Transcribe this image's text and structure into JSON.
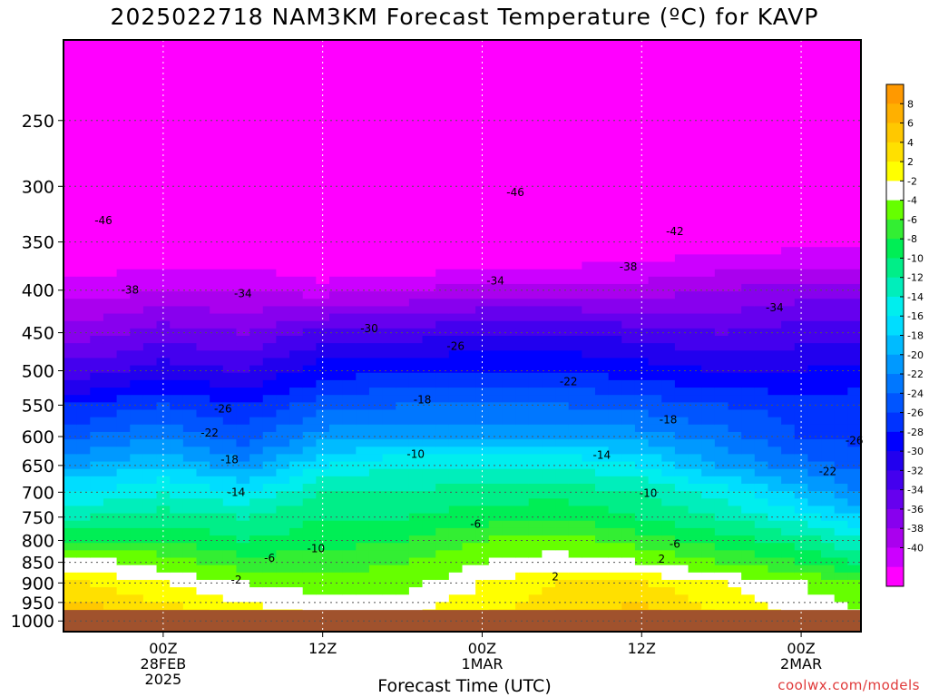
{
  "title": "2025022718 NAM3KM Forecast Temperature (ºC) for KAVP",
  "credit": "coolwx.com/models",
  "chart_data": {
    "type": "heatmap",
    "title": "2025022718 NAM3KM Forecast Temperature (ºC) for KAVP",
    "xlabel": "Forecast Time (UTC)",
    "ylabel": "",
    "y_ticks": [
      250,
      300,
      350,
      400,
      450,
      500,
      550,
      600,
      650,
      700,
      750,
      800,
      850,
      900,
      950,
      1000
    ],
    "x_ticks": [
      {
        "label": "00Z",
        "sub1": "28FEB",
        "sub2": "2025",
        "hour": 6
      },
      {
        "label": "12Z",
        "sub1": "",
        "sub2": "",
        "hour": 18
      },
      {
        "label": "00Z",
        "sub1": "1MAR",
        "sub2": "",
        "hour": 30
      },
      {
        "label": "12Z",
        "sub1": "",
        "sub2": "",
        "hour": 42
      },
      {
        "label": "00Z",
        "sub1": "2MAR",
        "sub2": "",
        "hour": 54
      }
    ],
    "x_hours": [
      0,
      6,
      12,
      18,
      24,
      30,
      36,
      42,
      48,
      54,
      60
    ],
    "levels_hpa": [
      200,
      250,
      300,
      350,
      400,
      450,
      500,
      550,
      600,
      650,
      700,
      750,
      800,
      850,
      900,
      950,
      1000
    ],
    "temperature_c": [
      [
        -54,
        -54,
        -54,
        -54,
        -54,
        -54,
        -54,
        -54,
        -54,
        -54,
        -54
      ],
      [
        -51,
        -50,
        -50,
        -51,
        -52,
        -53,
        -52,
        -51,
        -50,
        -50,
        -50
      ],
      [
        -46,
        -46,
        -46,
        -47,
        -48,
        -48,
        -47,
        -46,
        -45,
        -45,
        -45
      ],
      [
        -43,
        -42,
        -42,
        -44,
        -44,
        -44,
        -43,
        -42,
        -41,
        -41,
        -41
      ],
      [
        -39,
        -38,
        -38,
        -39,
        -38,
        -37,
        -37,
        -37,
        -36,
        -35,
        -35
      ],
      [
        -35,
        -33,
        -34,
        -31,
        -31,
        -30,
        -30,
        -31,
        -32,
        -31,
        -31
      ],
      [
        -31,
        -29,
        -30,
        -27,
        -26,
        -26,
        -26,
        -27,
        -28,
        -28,
        -27
      ],
      [
        -26,
        -24,
        -26,
        -23,
        -22,
        -22,
        -22,
        -23,
        -24,
        -25,
        -25
      ],
      [
        -22,
        -20,
        -23,
        -19,
        -18,
        -18,
        -18,
        -19,
        -21,
        -24,
        -25
      ],
      [
        -18,
        -16,
        -19,
        -14,
        -12,
        -12,
        -12,
        -14,
        -18,
        -21,
        -23
      ],
      [
        -14,
        -12,
        -14,
        -10,
        -10,
        -9,
        -9,
        -10,
        -13,
        -17,
        -21
      ],
      [
        -10,
        -9,
        -10,
        -8,
        -8,
        -7,
        -6,
        -8,
        -10,
        -13,
        -17
      ],
      [
        -6,
        -6,
        -8,
        -7,
        -6,
        -4,
        -3,
        -5,
        -7,
        -9,
        -13
      ],
      [
        -1,
        -3,
        -5,
        -5,
        -4,
        -2,
        -1,
        -2,
        -4,
        -6,
        -9
      ],
      [
        2,
        0,
        -2,
        -3,
        -3,
        0,
        2,
        2,
        0,
        -2,
        -5
      ],
      [
        4,
        2,
        0,
        -1,
        -1,
        1,
        3,
        4,
        1,
        -1,
        -3
      ],
      [
        6,
        4,
        2,
        0,
        0,
        2,
        5,
        5,
        2,
        0,
        -2
      ]
    ],
    "surface_hpa": [
      970,
      970,
      970,
      970,
      970,
      970,
      970,
      970,
      970,
      970,
      970
    ],
    "contour_labels": [
      {
        "text": "-46",
        "hour": 1.5,
        "hpa": 330
      },
      {
        "text": "-46",
        "hour": 32.5,
        "hpa": 305
      },
      {
        "text": "-42",
        "hour": 44.5,
        "hpa": 340
      },
      {
        "text": "-38",
        "hour": 3.5,
        "hpa": 400
      },
      {
        "text": "-38",
        "hour": 41,
        "hpa": 375
      },
      {
        "text": "-34",
        "hour": 12,
        "hpa": 404
      },
      {
        "text": "-34",
        "hour": 31,
        "hpa": 390
      },
      {
        "text": "-34",
        "hour": 52,
        "hpa": 420
      },
      {
        "text": "-30",
        "hour": 21.5,
        "hpa": 445
      },
      {
        "text": "-26",
        "hour": 28,
        "hpa": 467
      },
      {
        "text": "-26",
        "hour": 10.5,
        "hpa": 556
      },
      {
        "text": "-26",
        "hour": 58,
        "hpa": 607
      },
      {
        "text": "-22",
        "hour": 36.5,
        "hpa": 515
      },
      {
        "text": "-22",
        "hour": 9.5,
        "hpa": 594
      },
      {
        "text": "-22",
        "hour": 56,
        "hpa": 661
      },
      {
        "text": "-18",
        "hour": 25.5,
        "hpa": 542
      },
      {
        "text": "-18",
        "hour": 44,
        "hpa": 573
      },
      {
        "text": "-18",
        "hour": 11,
        "hpa": 640
      },
      {
        "text": "-14",
        "hour": 11.5,
        "hpa": 700
      },
      {
        "text": "-14",
        "hour": 39,
        "hpa": 632
      },
      {
        "text": "-10",
        "hour": 25,
        "hpa": 630
      },
      {
        "text": "-10",
        "hour": 42.5,
        "hpa": 702
      },
      {
        "text": "-10",
        "hour": 17.5,
        "hpa": 818
      },
      {
        "text": "-6",
        "hour": 29.5,
        "hpa": 765
      },
      {
        "text": "-6",
        "hour": 44.5,
        "hpa": 808
      },
      {
        "text": "-6",
        "hour": 14,
        "hpa": 840
      },
      {
        "text": "-2",
        "hour": 11.5,
        "hpa": 893
      },
      {
        "text": "2",
        "hour": 43.5,
        "hpa": 842
      },
      {
        "text": "2",
        "hour": 35.5,
        "hpa": 885
      }
    ],
    "colorbar": {
      "labels": [
        "8",
        "6",
        "4",
        "2",
        "-2",
        "-4",
        "-6",
        "-8",
        "-10",
        "-12",
        "-14",
        "-16",
        "-18",
        "-20",
        "-22",
        "-24",
        "-26",
        "-28",
        "-30",
        "-32",
        "-34",
        "-36",
        "-38",
        "-40"
      ],
      "colors": [
        "#ff9900",
        "#ffb000",
        "#ffc800",
        "#ffe000",
        "#ffff00",
        "#ffffff",
        "#66ff00",
        "#33ee33",
        "#00ee55",
        "#00ee88",
        "#00eebb",
        "#00eeee",
        "#00ddff",
        "#00bbff",
        "#0099ff",
        "#0077ff",
        "#0055ff",
        "#0033ff",
        "#0000ff",
        "#2200ee",
        "#4400ee",
        "#6600ee",
        "#8800ee",
        "#aa00ee",
        "#cc00ff",
        "#ff00ff"
      ]
    }
  }
}
